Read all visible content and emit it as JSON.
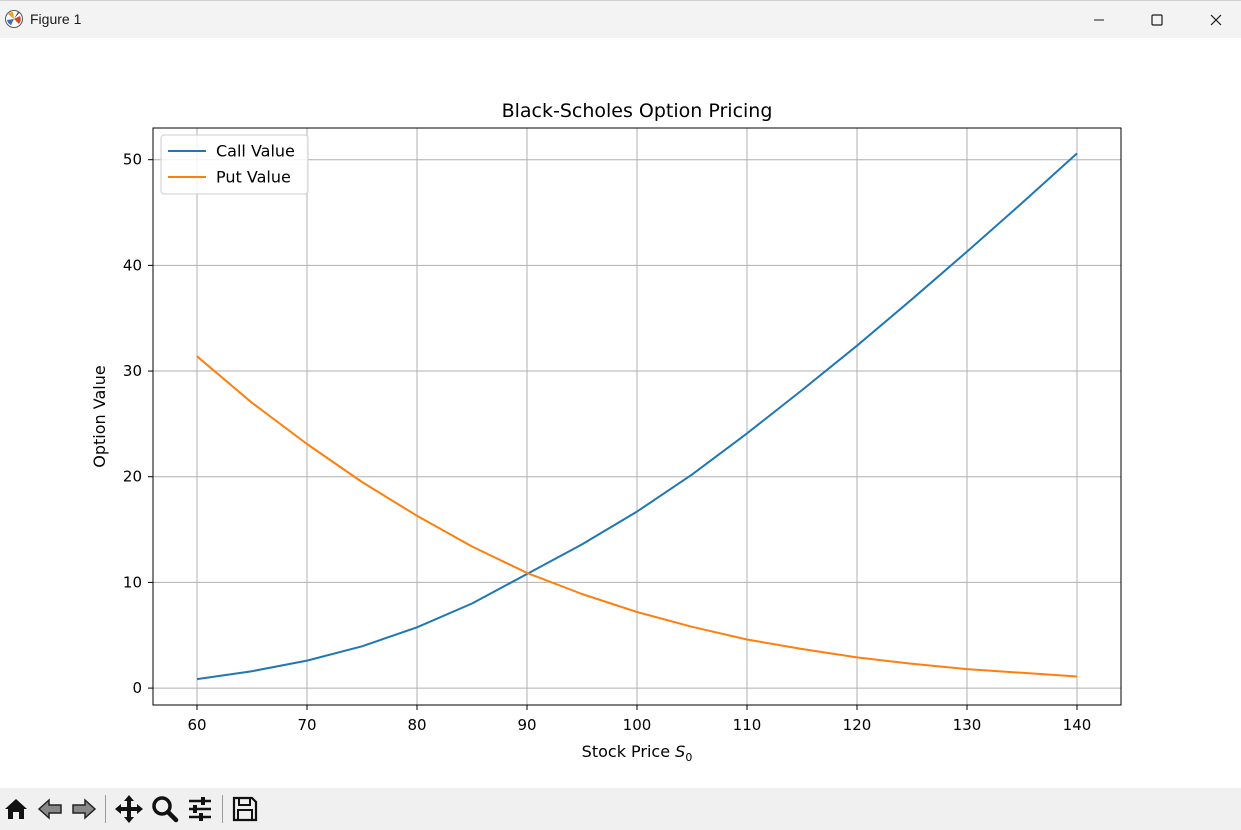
{
  "window": {
    "title": "Figure 1"
  },
  "toolbar": {
    "items": [
      "home-icon",
      "back-icon",
      "forward-icon",
      "pan-icon",
      "zoom-icon",
      "configure-subplots-icon",
      "save-icon"
    ]
  },
  "chart_data": {
    "type": "line",
    "title": "Black-Scholes Option Pricing",
    "xlabel_main": "Stock Price ",
    "xlabel_sym": "S",
    "xlabel_sub": "0",
    "ylabel": "Option Value",
    "xlim": [
      56,
      144
    ],
    "ylim": [
      -1.6,
      53
    ],
    "xticks": [
      60,
      70,
      80,
      90,
      100,
      110,
      120,
      130,
      140
    ],
    "yticks": [
      0,
      10,
      20,
      30,
      40,
      50
    ],
    "grid": true,
    "legend_position": "upper-left",
    "series": [
      {
        "name": "Call Value",
        "color": "#1f77b4",
        "x": [
          60,
          65,
          70,
          75,
          80,
          85,
          90,
          95,
          100,
          105,
          110,
          115,
          120,
          125,
          130,
          135,
          140
        ],
        "values": [
          0.85,
          1.6,
          2.6,
          3.95,
          5.75,
          8.0,
          10.8,
          13.6,
          16.7,
          20.2,
          24.1,
          28.2,
          32.4,
          36.8,
          41.3,
          45.9,
          50.6
        ]
      },
      {
        "name": "Put Value",
        "color": "#ff7f0e",
        "x": [
          60,
          65,
          70,
          75,
          80,
          85,
          90,
          95,
          100,
          105,
          110,
          115,
          120,
          125,
          130,
          135,
          140
        ],
        "values": [
          31.4,
          27.0,
          23.1,
          19.5,
          16.3,
          13.4,
          10.9,
          8.9,
          7.2,
          5.8,
          4.6,
          3.7,
          2.9,
          2.3,
          1.8,
          1.45,
          1.1
        ]
      }
    ]
  }
}
